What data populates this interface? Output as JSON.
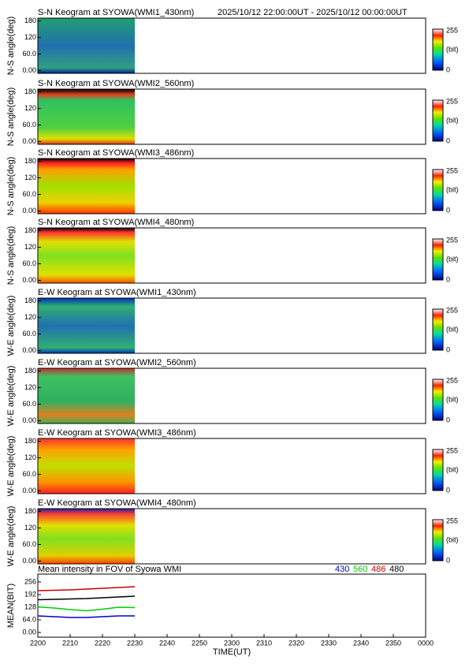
{
  "chart_data": [
    {
      "type": "keogram",
      "title": "S-N Keogram at SYOWA(WMI1_430nm)",
      "subtitle": "2025/10/12 22:00:00UT - 2025/10/12 00:00:00UT",
      "ylabel": "N-S angle(deg)",
      "ylim": [
        -10,
        190
      ],
      "yticks": [
        {
          "value": 0,
          "label": "0.00"
        },
        {
          "value": 60,
          "label": "60.0"
        },
        120,
        180
      ],
      "clim": [
        0,
        255
      ],
      "cticks": [
        255,
        0
      ],
      "clabel": "(bit)"
    },
    {
      "type": "keogram",
      "title": "S-N Keogram at SYOWA(WMI2_560nm)",
      "ylabel": "N-S angle(deg)",
      "ylim": [
        -10,
        190
      ],
      "yticks": [
        {
          "value": 0,
          "label": "0.00"
        },
        {
          "value": 60,
          "label": "60.0"
        },
        120,
        180
      ],
      "clim": [
        0,
        255
      ],
      "cticks": [
        255,
        0
      ],
      "clabel": "(bit)"
    },
    {
      "type": "keogram",
      "title": "S-N Keogram at SYOWA(WMI3_486nm)",
      "ylabel": "N-S angle(deg)",
      "ylim": [
        -10,
        190
      ],
      "yticks": [
        {
          "value": 0,
          "label": "0.00"
        },
        {
          "value": 60,
          "label": "60.0"
        },
        120,
        180
      ],
      "clim": [
        0,
        255
      ],
      "cticks": [
        255,
        0
      ],
      "clabel": "(bit)"
    },
    {
      "type": "keogram",
      "title": "S-N Keogram at SYOWA(WMI4_480nm)",
      "ylabel": "N-S angle(deg)",
      "ylim": [
        -10,
        190
      ],
      "yticks": [
        {
          "value": 0,
          "label": "0.00"
        },
        {
          "value": 60,
          "label": "60.0"
        },
        120,
        180
      ],
      "clim": [
        0,
        255
      ],
      "cticks": [
        255,
        0
      ],
      "clabel": "(bit)"
    },
    {
      "type": "keogram",
      "title": "E-W Keogram at SYOWA(WMI1_430nm)",
      "ylabel": "W-E angle(deg)",
      "ylim": [
        -10,
        190
      ],
      "yticks": [
        {
          "value": 0,
          "label": "0.00"
        },
        {
          "value": 60,
          "label": "60.0"
        },
        120,
        180
      ],
      "clim": [
        0,
        255
      ],
      "cticks": [
        255,
        0
      ],
      "clabel": "(bit)"
    },
    {
      "type": "keogram",
      "title": "E-W Keogram at SYOWA(WMI2_560nm)",
      "ylabel": "W-E angle(deg)",
      "ylim": [
        -10,
        190
      ],
      "yticks": [
        {
          "value": 0,
          "label": "0.00"
        },
        {
          "value": 60,
          "label": "60.0"
        },
        120,
        180
      ],
      "clim": [
        0,
        255
      ],
      "cticks": [
        255,
        0
      ],
      "clabel": "(bit)"
    },
    {
      "type": "keogram",
      "title": "E-W Keogram at SYOWA(WMI3_486nm)",
      "ylabel": "W-E angle(deg)",
      "ylim": [
        -10,
        190
      ],
      "yticks": [
        {
          "value": 0,
          "label": "0.00"
        },
        {
          "value": 60,
          "label": "60.0"
        },
        120,
        180
      ],
      "clim": [
        0,
        255
      ],
      "cticks": [
        255,
        0
      ],
      "clabel": "(bit)"
    },
    {
      "type": "keogram",
      "title": "E-W Keogram at SYOWA(WMI4_480nm)",
      "ylabel": "W-E angle(deg)",
      "ylim": [
        -10,
        190
      ],
      "yticks": [
        {
          "value": 0,
          "label": "0.00"
        },
        {
          "value": 60,
          "label": "60.0"
        },
        120,
        180
      ],
      "clim": [
        0,
        255
      ],
      "cticks": [
        255,
        0
      ],
      "clabel": "(bit)"
    },
    {
      "type": "line",
      "title": "Mean intensity in FOV of Syowa WMI",
      "ylabel": "MEAN(BIT)",
      "xlabel": "TIME(UT)",
      "xlim": [
        0,
        120
      ],
      "xticks": [
        {
          "value": 0,
          "label": "2200"
        },
        {
          "value": 10,
          "label": "2210"
        },
        {
          "value": 20,
          "label": "2220"
        },
        {
          "value": 30,
          "label": "2230"
        },
        {
          "value": 40,
          "label": "2240"
        },
        {
          "value": 50,
          "label": "2250"
        },
        {
          "value": 60,
          "label": "2300"
        },
        {
          "value": 70,
          "label": "2310"
        },
        {
          "value": 80,
          "label": "2320"
        },
        {
          "value": 90,
          "label": "2330"
        },
        {
          "value": 100,
          "label": "2340"
        },
        {
          "value": 110,
          "label": "2350"
        },
        {
          "value": 120,
          "label": "0000"
        }
      ],
      "ylim": [
        -24,
        296
      ],
      "yticks": [
        {
          "value": 0,
          "label": "0.00"
        },
        {
          "value": 64,
          "label": "64.0"
        },
        128,
        192,
        256
      ],
      "x": [
        0,
        5,
        10,
        15,
        20,
        25,
        30
      ],
      "series": [
        {
          "name": "430",
          "color": "#0000cc",
          "values": [
            84,
            80,
            76,
            76,
            80,
            84,
            84
          ]
        },
        {
          "name": "560",
          "color": "#00cc00",
          "values": [
            130,
            124,
            116,
            110,
            118,
            128,
            126
          ]
        },
        {
          "name": "486",
          "color": "#cc0000",
          "values": [
            212,
            214,
            216,
            220,
            224,
            228,
            232
          ]
        },
        {
          "name": "480",
          "color": "#000000",
          "values": [
            166,
            168,
            170,
            172,
            176,
            180,
            184
          ]
        }
      ]
    }
  ]
}
